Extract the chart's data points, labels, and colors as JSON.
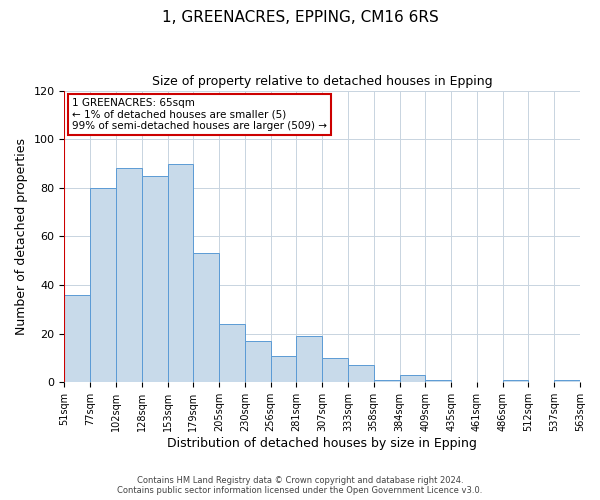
{
  "title": "1, GREENACRES, EPPING, CM16 6RS",
  "subtitle": "Size of property relative to detached houses in Epping",
  "xlabel": "Distribution of detached houses by size in Epping",
  "ylabel": "Number of detached properties",
  "bar_heights": [
    36,
    80,
    88,
    85,
    90,
    53,
    24,
    17,
    11,
    19,
    10,
    7,
    1,
    3,
    1,
    0,
    0,
    1,
    0,
    1
  ],
  "bin_labels": [
    "51sqm",
    "77sqm",
    "102sqm",
    "128sqm",
    "153sqm",
    "179sqm",
    "205sqm",
    "230sqm",
    "256sqm",
    "281sqm",
    "307sqm",
    "333sqm",
    "358sqm",
    "384sqm",
    "409sqm",
    "435sqm",
    "461sqm",
    "486sqm",
    "512sqm",
    "537sqm",
    "563sqm"
  ],
  "bar_color": "#c8daea",
  "bar_edge_color": "#5b9bd5",
  "annotation_box_text": "1 GREENACRES: 65sqm\n← 1% of detached houses are smaller (5)\n99% of semi-detached houses are larger (509) →",
  "vline_color": "#cc0000",
  "ylim": [
    0,
    120
  ],
  "yticks": [
    0,
    20,
    40,
    60,
    80,
    100,
    120
  ],
  "footer_line1": "Contains HM Land Registry data © Crown copyright and database right 2024.",
  "footer_line2": "Contains public sector information licensed under the Open Government Licence v3.0.",
  "background_color": "#ffffff",
  "grid_color": "#c8d4e0"
}
